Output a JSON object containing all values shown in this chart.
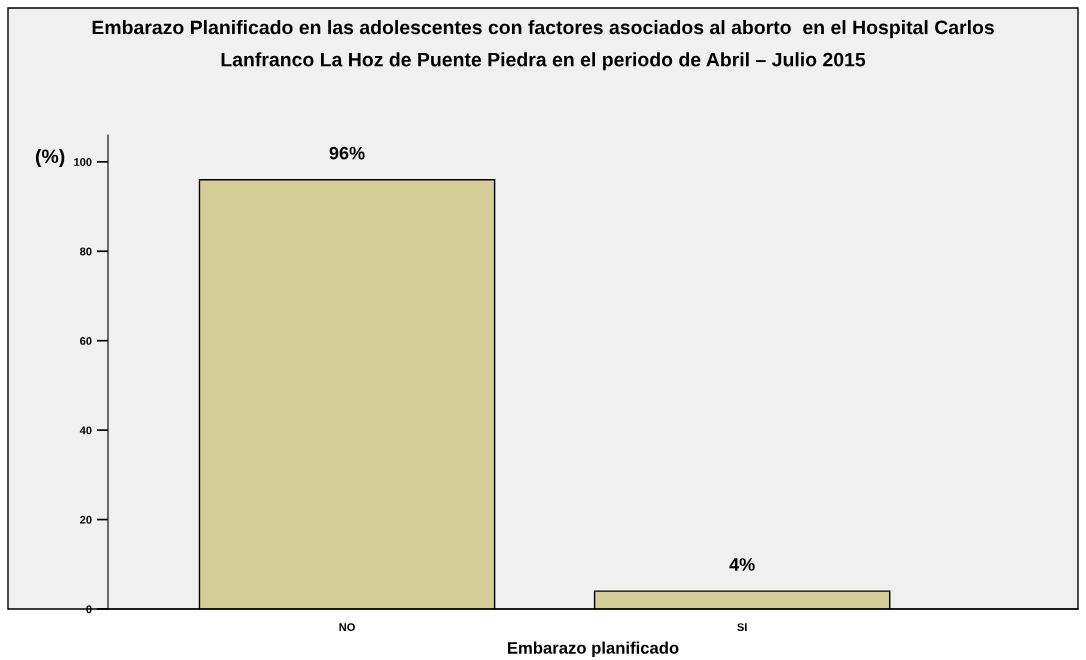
{
  "chart_data": {
    "type": "bar",
    "title": "Embarazo Planificado en las adolescentes con factores asociados al aborto  en el Hospital Carlos Lanfranco La Hoz de Puente Piedra en el periodo de Abril – Julio 2015",
    "xlabel": "Embarazo planificado",
    "ylabel": "(%)",
    "categories": [
      "NO",
      "SI"
    ],
    "values": [
      96,
      4
    ],
    "value_labels": [
      "96%",
      "4%"
    ],
    "color": "#d3ce98",
    "ylim": [
      0,
      106
    ],
    "yticks": [
      0,
      20,
      40,
      60,
      80,
      100
    ],
    "grid": false,
    "legend": false
  }
}
